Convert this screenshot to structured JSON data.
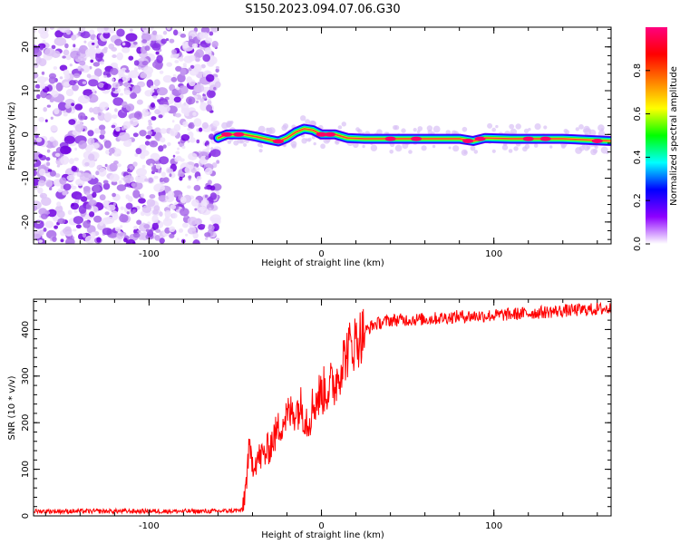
{
  "figure": {
    "title": "S150.2023.094.07.06.G30"
  },
  "chart_data": [
    {
      "type": "heatmap",
      "xlabel": "Height of straight line (km)",
      "ylabel": "Frequency (Hz)",
      "xlim": [
        -167,
        168
      ],
      "ylim": [
        -25,
        24.5
      ],
      "x_ticks": [
        -100,
        0,
        100
      ],
      "y_ticks": [
        -20,
        -10,
        0,
        10,
        20
      ],
      "grid": false,
      "noise_region_x": [
        -167,
        -60
      ],
      "signal_band": [
        {
          "x": -60,
          "f": -0.8
        },
        {
          "x": -55,
          "f": 0.0
        },
        {
          "x": -45,
          "f": 0.0
        },
        {
          "x": -38,
          "f": -0.5
        },
        {
          "x": -30,
          "f": -1.2
        },
        {
          "x": -25,
          "f": -1.6
        },
        {
          "x": -20,
          "f": -0.8
        },
        {
          "x": -15,
          "f": 0.5
        },
        {
          "x": -10,
          "f": 1.3
        },
        {
          "x": -5,
          "f": 1.0
        },
        {
          "x": 0,
          "f": 0.0
        },
        {
          "x": 8,
          "f": 0.0
        },
        {
          "x": 15,
          "f": -0.8
        },
        {
          "x": 25,
          "f": -1.0
        },
        {
          "x": 80,
          "f": -1.0
        },
        {
          "x": 88,
          "f": -1.5
        },
        {
          "x": 95,
          "f": -0.8
        },
        {
          "x": 110,
          "f": -1.0
        },
        {
          "x": 140,
          "f": -1.0
        },
        {
          "x": 168,
          "f": -1.5
        }
      ],
      "colorbar": {
        "label": "Normalized spectral amplitude",
        "range": [
          0,
          1
        ],
        "ticks": [
          "0.0",
          "0.2",
          "0.4",
          "0.6",
          "0.8"
        ],
        "colors": [
          "#ffffff",
          "#8e00ff",
          "#0000ff",
          "#00ffff",
          "#00ff00",
          "#ffff00",
          "#ff7f00",
          "#ff0000",
          "#ff007f"
        ]
      }
    },
    {
      "type": "line",
      "xlabel": "Height of straight line (km)",
      "ylabel": "SNR (10 * v/v)",
      "xlim": [
        -167,
        168
      ],
      "ylim": [
        0,
        465
      ],
      "x_ticks": [
        -100,
        0,
        100
      ],
      "y_ticks": [
        0,
        100,
        200,
        300,
        400
      ],
      "grid": false,
      "line_color": "#ff0000",
      "series": [
        {
          "x": [
            -167,
            -60,
            -46,
            -44,
            -42,
            -40,
            -36,
            -32,
            -28,
            -24,
            -20,
            -16,
            -12,
            -8,
            -4,
            0,
            4,
            8,
            12,
            16,
            20,
            25,
            30,
            40,
            60,
            80,
            100,
            120,
            140,
            168
          ],
          "values": [
            10,
            10,
            12,
            60,
            140,
            115,
            125,
            135,
            165,
            195,
            215,
            225,
            235,
            205,
            245,
            265,
            275,
            285,
            330,
            360,
            375,
            395,
            410,
            420,
            422,
            428,
            430,
            435,
            440,
            445
          ]
        }
      ]
    }
  ]
}
